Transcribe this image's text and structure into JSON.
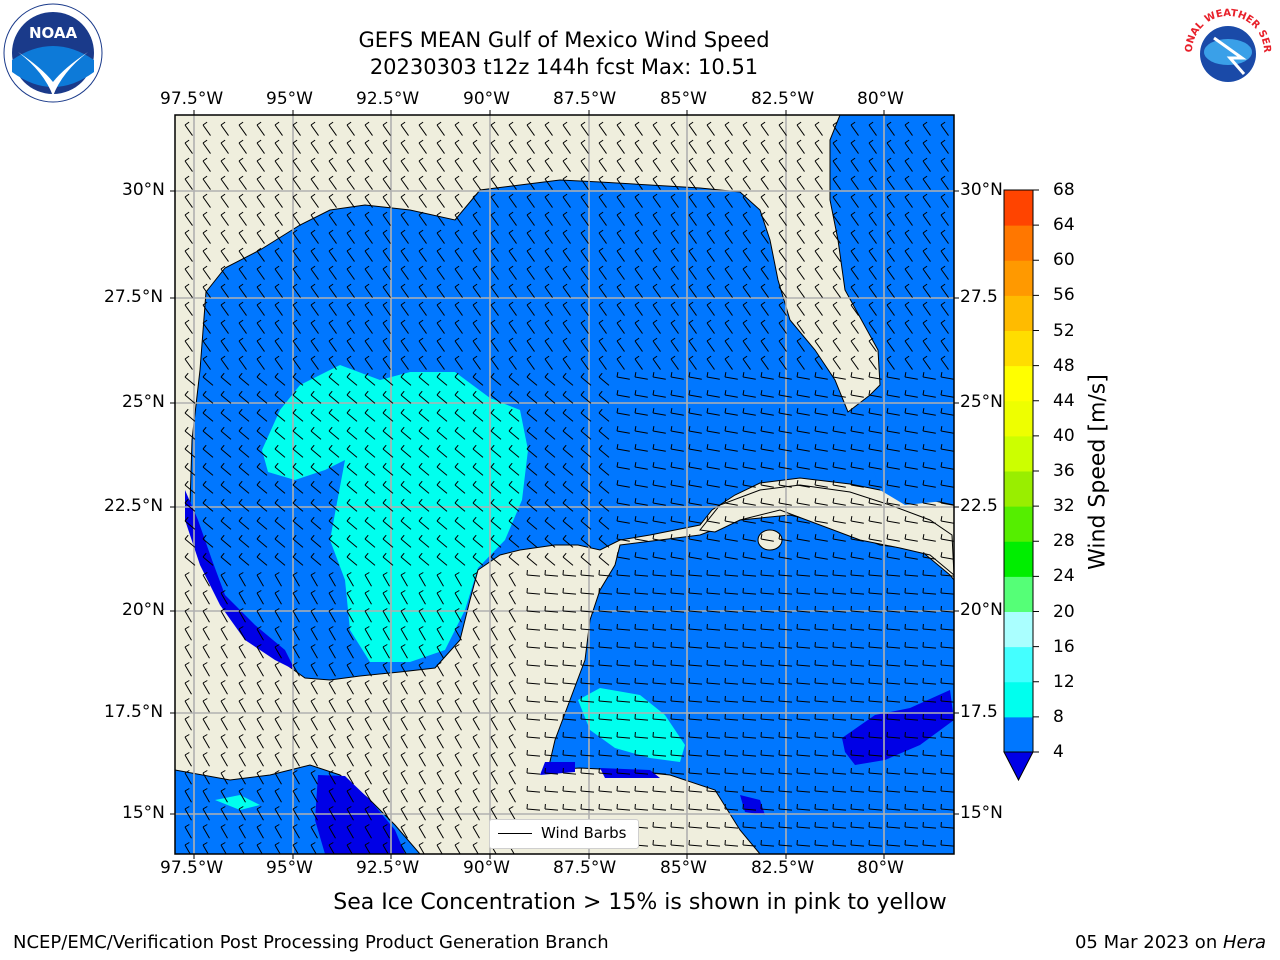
{
  "title_line1": "GEFS MEAN Gulf of Mexico Wind Speed",
  "title_line2": "20230303 t12z 144h fcst   Max: 10.51",
  "lon_labels": [
    "97.5°W",
    "95°W",
    "92.5°W",
    "90°W",
    "87.5°W",
    "85°W",
    "82.5°W",
    "80°W"
  ],
  "lat_labels_left": [
    "30°N",
    "27.5°N",
    "25°N",
    "22.5°N",
    "20°N",
    "17.5°N",
    "15°N"
  ],
  "lat_labels_right": [
    "30°N",
    "27.5",
    "25°N",
    "22.5",
    "20°N",
    "17.5",
    "15°N"
  ],
  "legend_label": "Wind Barbs",
  "colorbar": {
    "title": "Wind Speed [m/s]",
    "ticks": [
      "68",
      "64",
      "60",
      "56",
      "52",
      "48",
      "44",
      "40",
      "36",
      "32",
      "28",
      "24",
      "20",
      "16",
      "12",
      "8",
      "4"
    ],
    "colors": [
      "#0000e6",
      "#0077ff",
      "#00ffee",
      "#44ffff",
      "#aaffff",
      "#55ff77",
      "#00ee00",
      "#55ee00",
      "#99ee00",
      "#ccff00",
      "#eeff00",
      "#ffff00",
      "#ffdd00",
      "#ffbb00",
      "#ff9900",
      "#ff7700",
      "#ff4400",
      "#ff0000"
    ]
  },
  "subtitle": "Sea Ice Concentration > 15% is shown in pink to yellow",
  "footer_left": "NCEP/EMC/Verification Post Processing Product Generation Branch",
  "footer_date": "05 Mar 2023",
  "footer_on": " on ",
  "footer_host": "Hera",
  "logos": {
    "left": "NOAA",
    "right": "NATIONAL WEATHER SERVICE"
  },
  "map_colors": {
    "land": "#efeedd",
    "ocean_4_8": "#0077ff",
    "ocean_8_12": "#00ffee",
    "ocean_0_4": "#0000e6",
    "grid": "#b0b0b0"
  }
}
